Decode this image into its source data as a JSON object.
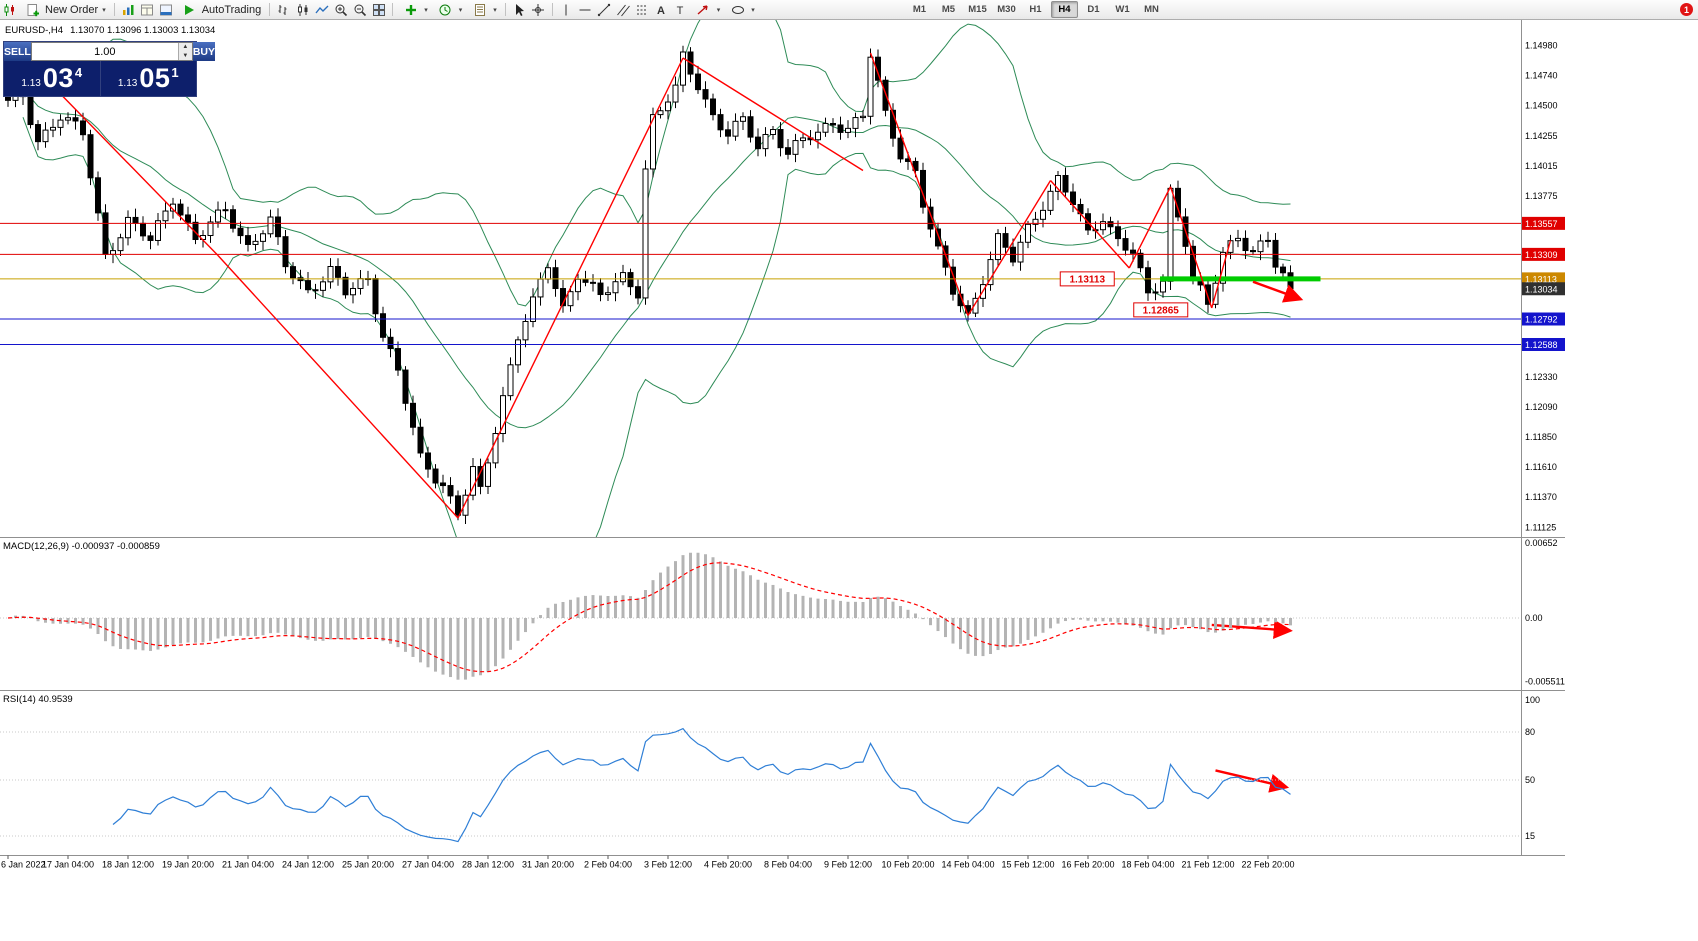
{
  "toolbar": {
    "new_order_label": "New Order",
    "autotrading_label": "AutoTrading",
    "timeframes": [
      "M1",
      "M5",
      "M15",
      "M30",
      "H1",
      "H4",
      "D1",
      "W1",
      "MN"
    ],
    "active_timeframe": "H4",
    "notification_badge": "1"
  },
  "quote_bar": {
    "symbol": "EURUSD-,H4",
    "ohlc": "1.13070 1.13096 1.13003 1.13034"
  },
  "trade_panel": {
    "sell_label": "SELL",
    "buy_label": "BUY",
    "volume": "1.00",
    "sell_price_small": "1.13",
    "sell_price_big": "03",
    "sell_price_sup": "4",
    "buy_price_small": "1.13",
    "buy_price_big": "05",
    "buy_price_sup": "1"
  },
  "indicators": {
    "macd_label": "MACD(12,26,9) -0.000937 -0.000859",
    "rsi_label": "RSI(14) 40.9539"
  },
  "axes": {
    "price_labels": [
      "1.14980",
      "1.14740",
      "1.14500",
      "1.14255",
      "1.14015",
      "1.13775",
      "1.12330",
      "1.12090",
      "1.11850",
      "1.11610",
      "1.11370",
      "1.11125"
    ],
    "price_tags": [
      {
        "text": "1.13557",
        "color": "#e00000"
      },
      {
        "text": "1.13309",
        "color": "#e00000"
      },
      {
        "text": "1.13113",
        "color": "#cc8800"
      },
      {
        "text": "1.13034",
        "color": "#303030"
      },
      {
        "text": "1.12792",
        "color": "#1414cc"
      },
      {
        "text": "1.12588",
        "color": "#1414cc"
      }
    ],
    "macd_axis": [
      "0.00652",
      "0.00",
      "-0.005511"
    ],
    "rsi_axis": [
      "100",
      "80",
      "50",
      "15"
    ],
    "time_labels": [
      "6 Jan 2022",
      "17 Jan 04:00",
      "18 Jan 12:00",
      "19 Jan 20:00",
      "21 Jan 04:00",
      "24 Jan 12:00",
      "25 Jan 20:00",
      "27 Jan 04:00",
      "28 Jan 12:00",
      "31 Jan 20:00",
      "2 Feb 04:00",
      "3 Feb 12:00",
      "4 Feb 20:00",
      "8 Feb 04:00",
      "9 Feb 12:00",
      "10 Feb 20:00",
      "14 Feb 04:00",
      "15 Feb 12:00",
      "16 Feb 20:00",
      "18 Feb 04:00",
      "21 Feb 12:00",
      "22 Feb 20:00"
    ]
  },
  "chart_data": {
    "type": "candlestick",
    "symbol": "EURUSD",
    "timeframe": "H4",
    "candle_count": 172,
    "last_close": 1.13034,
    "price_keypoints": [
      [
        0,
        1.1452
      ],
      [
        1,
        1.1474
      ],
      [
        4,
        1.1422
      ],
      [
        7,
        1.1442
      ],
      [
        10,
        1.1427
      ],
      [
        13,
        1.133
      ],
      [
        16,
        1.1357
      ],
      [
        19,
        1.1342
      ],
      [
        22,
        1.1377
      ],
      [
        25,
        1.1342
      ],
      [
        29,
        1.1367
      ],
      [
        32,
        1.1337
      ],
      [
        35,
        1.1357
      ],
      [
        37,
        1.1322
      ],
      [
        40,
        1.1302
      ],
      [
        43,
        1.1317
      ],
      [
        45,
        1.13
      ],
      [
        48,
        1.1312
      ],
      [
        50,
        1.1267
      ],
      [
        52,
        1.1237
      ],
      [
        55,
        1.1167
      ],
      [
        58,
        1.1147
      ],
      [
        60,
        1.1124
      ],
      [
        62,
        1.1157
      ],
      [
        63,
        1.114
      ],
      [
        66,
        1.1217
      ],
      [
        68,
        1.1267
      ],
      [
        70,
        1.1292
      ],
      [
        72,
        1.1322
      ],
      [
        74,
        1.1287
      ],
      [
        76,
        1.1317
      ],
      [
        79,
        1.1297
      ],
      [
        82,
        1.1312
      ],
      [
        84,
        1.1302
      ],
      [
        85,
        1.14
      ],
      [
        86,
        1.144
      ],
      [
        87,
        1.1447
      ],
      [
        89,
        1.1462
      ],
      [
        90,
        1.1488
      ],
      [
        92,
        1.1467
      ],
      [
        94,
        1.1442
      ],
      [
        96,
        1.1427
      ],
      [
        98,
        1.1437
      ],
      [
        100,
        1.1417
      ],
      [
        102,
        1.1432
      ],
      [
        104,
        1.1412
      ],
      [
        106,
        1.1422
      ],
      [
        108,
        1.1427
      ],
      [
        110,
        1.1437
      ],
      [
        112,
        1.1432
      ],
      [
        114,
        1.1442
      ],
      [
        115,
        1.149
      ],
      [
        117,
        1.1442
      ],
      [
        119,
        1.1412
      ],
      [
        121,
        1.1397
      ],
      [
        122,
        1.1372
      ],
      [
        124,
        1.1332
      ],
      [
        126,
        1.1302
      ],
      [
        128,
        1.1282
      ],
      [
        130,
        1.1312
      ],
      [
        132,
        1.1342
      ],
      [
        134,
        1.1327
      ],
      [
        136,
        1.1352
      ],
      [
        138,
        1.1372
      ],
      [
        140,
        1.139
      ],
      [
        142,
        1.1372
      ],
      [
        144,
        1.1347
      ],
      [
        146,
        1.1362
      ],
      [
        148,
        1.1342
      ],
      [
        150,
        1.1332
      ],
      [
        152,
        1.1297
      ],
      [
        154,
        1.1312
      ],
      [
        155,
        1.1382
      ],
      [
        157,
        1.1342
      ],
      [
        158,
        1.1312
      ],
      [
        160,
        1.1289
      ],
      [
        162,
        1.1332
      ],
      [
        164,
        1.1347
      ],
      [
        166,
        1.1332
      ],
      [
        168,
        1.1342
      ],
      [
        169,
        1.1322
      ],
      [
        171,
        1.13034
      ]
    ],
    "hlines": [
      {
        "price": 1.13557,
        "color": "#e00000"
      },
      {
        "price": 1.13309,
        "color": "#e00000"
      },
      {
        "price": 1.13113,
        "color": "#c8a000"
      },
      {
        "price": 1.12792,
        "color": "#1414cc"
      },
      {
        "price": 1.12588,
        "color": "#1414cc"
      }
    ],
    "trend_lines": [
      {
        "points": [
          [
            2,
            1.149
          ],
          [
            28,
            1.133
          ]
        ]
      },
      {
        "points": [
          [
            28,
            1.133
          ],
          [
            60,
            1.112
          ]
        ]
      },
      {
        "points": [
          [
            60,
            1.112
          ],
          [
            90,
            1.1488
          ]
        ]
      },
      {
        "points": [
          [
            90,
            1.1488
          ],
          [
            114,
            1.1398
          ]
        ]
      },
      {
        "points": [
          [
            115,
            1.1492
          ],
          [
            128,
            1.1282
          ]
        ]
      },
      {
        "points": [
          [
            128,
            1.1282
          ],
          [
            139,
            1.139
          ]
        ]
      },
      {
        "points": [
          [
            139,
            1.139
          ],
          [
            149.5,
            1.132
          ]
        ]
      },
      {
        "points": [
          [
            149.5,
            1.132
          ],
          [
            155,
            1.1385
          ]
        ]
      },
      {
        "points": [
          [
            155,
            1.1385
          ],
          [
            160.5,
            1.1288
          ]
        ]
      },
      {
        "points": [
          [
            160.5,
            1.1288
          ],
          [
            163,
            1.1342
          ]
        ]
      }
    ],
    "green_segment": {
      "from_i": 153.6,
      "to_i": 175,
      "price": 1.13113
    },
    "arrows": [
      {
        "panel": "main",
        "from": [
          166,
          1.1309
        ],
        "to": [
          172.4,
          1.1295
        ]
      },
      {
        "panel": "macd",
        "from": [
          160.5,
          -0.0006
        ],
        "to": [
          171,
          -0.0011
        ]
      },
      {
        "panel": "rsi",
        "from": [
          161,
          56
        ],
        "to": [
          170.5,
          45.5
        ]
      }
    ],
    "chart_labels": [
      {
        "text": "1.13113",
        "i": 143.9,
        "price": 1.13113
      },
      {
        "text": "1.12865",
        "i": 153.7,
        "price": 1.12865
      }
    ],
    "rsi_levels": [
      80,
      50,
      15
    ],
    "indicators": {
      "macd": {
        "fast": 12,
        "slow": 26,
        "signal": 9,
        "current": "-0.000937",
        "signal_current": "-0.000859"
      },
      "rsi": {
        "period": 14,
        "current": "40.9539"
      },
      "bollinger": {
        "period": 20,
        "deviation": 2
      }
    },
    "colors": {
      "bull": "#ffffff",
      "bear": "#000000",
      "outline": "#000000",
      "bollinger": "#2e8b57",
      "hist": "#b4b4b4",
      "signal": "#ff0000",
      "rsi": "#2f7fd6",
      "annotation": "#ff0000",
      "green_line": "#00cc00"
    }
  }
}
